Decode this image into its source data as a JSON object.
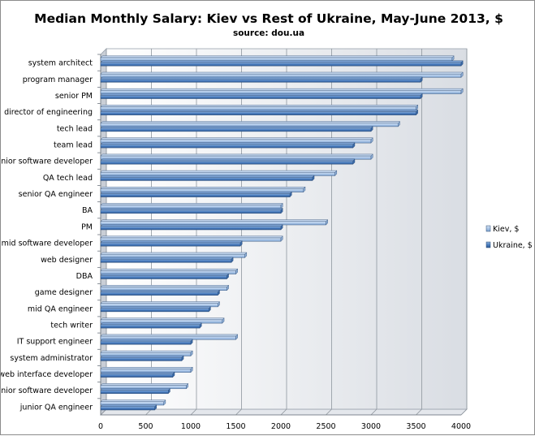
{
  "chart_data": {
    "type": "bar",
    "orientation": "horizontal",
    "title": "Median Monthly Salary: Kiev vs Rest of Ukraine, May-June 2013, $",
    "subtitle": "source: dou.ua",
    "xlabel": "",
    "ylabel": "",
    "xlim": [
      0,
      4000
    ],
    "x_ticks": [
      "0",
      "500",
      "1000",
      "1500",
      "2000",
      "2500",
      "3000",
      "3500",
      "4000"
    ],
    "x_tick_values": [
      0,
      500,
      1000,
      1500,
      2000,
      2500,
      3000,
      3500,
      4000
    ],
    "grid": true,
    "legend_position": "right",
    "categories": [
      "system architect",
      "program manager",
      "senior PM",
      "director of engineering",
      "tech lead",
      "team lead",
      "senior software developer",
      "QA tech lead",
      "senior QA engineer",
      "BA",
      "PM",
      "mid software developer",
      "web designer",
      "DBA",
      "game designer",
      "mid QA engineer",
      "tech writer",
      "IT support engineer",
      "system administrator",
      "web interface developer",
      "junior software developer",
      "junior QA engineer"
    ],
    "series": [
      {
        "name": "Kiev, $",
        "color": "#a9c4e6",
        "values": [
          3900,
          4000,
          4000,
          3500,
          3300,
          3000,
          3000,
          2600,
          2250,
          2000,
          2500,
          2000,
          1600,
          1500,
          1400,
          1300,
          1350,
          1500,
          1000,
          1000,
          950,
          700
        ]
      },
      {
        "name": "Ukraine, $",
        "color": "#4a7dbf",
        "values": [
          4000,
          3550,
          3550,
          3500,
          3000,
          2800,
          2800,
          2350,
          2100,
          2000,
          2000,
          1550,
          1450,
          1400,
          1300,
          1200,
          1100,
          1000,
          900,
          800,
          750,
          600
        ]
      }
    ]
  }
}
